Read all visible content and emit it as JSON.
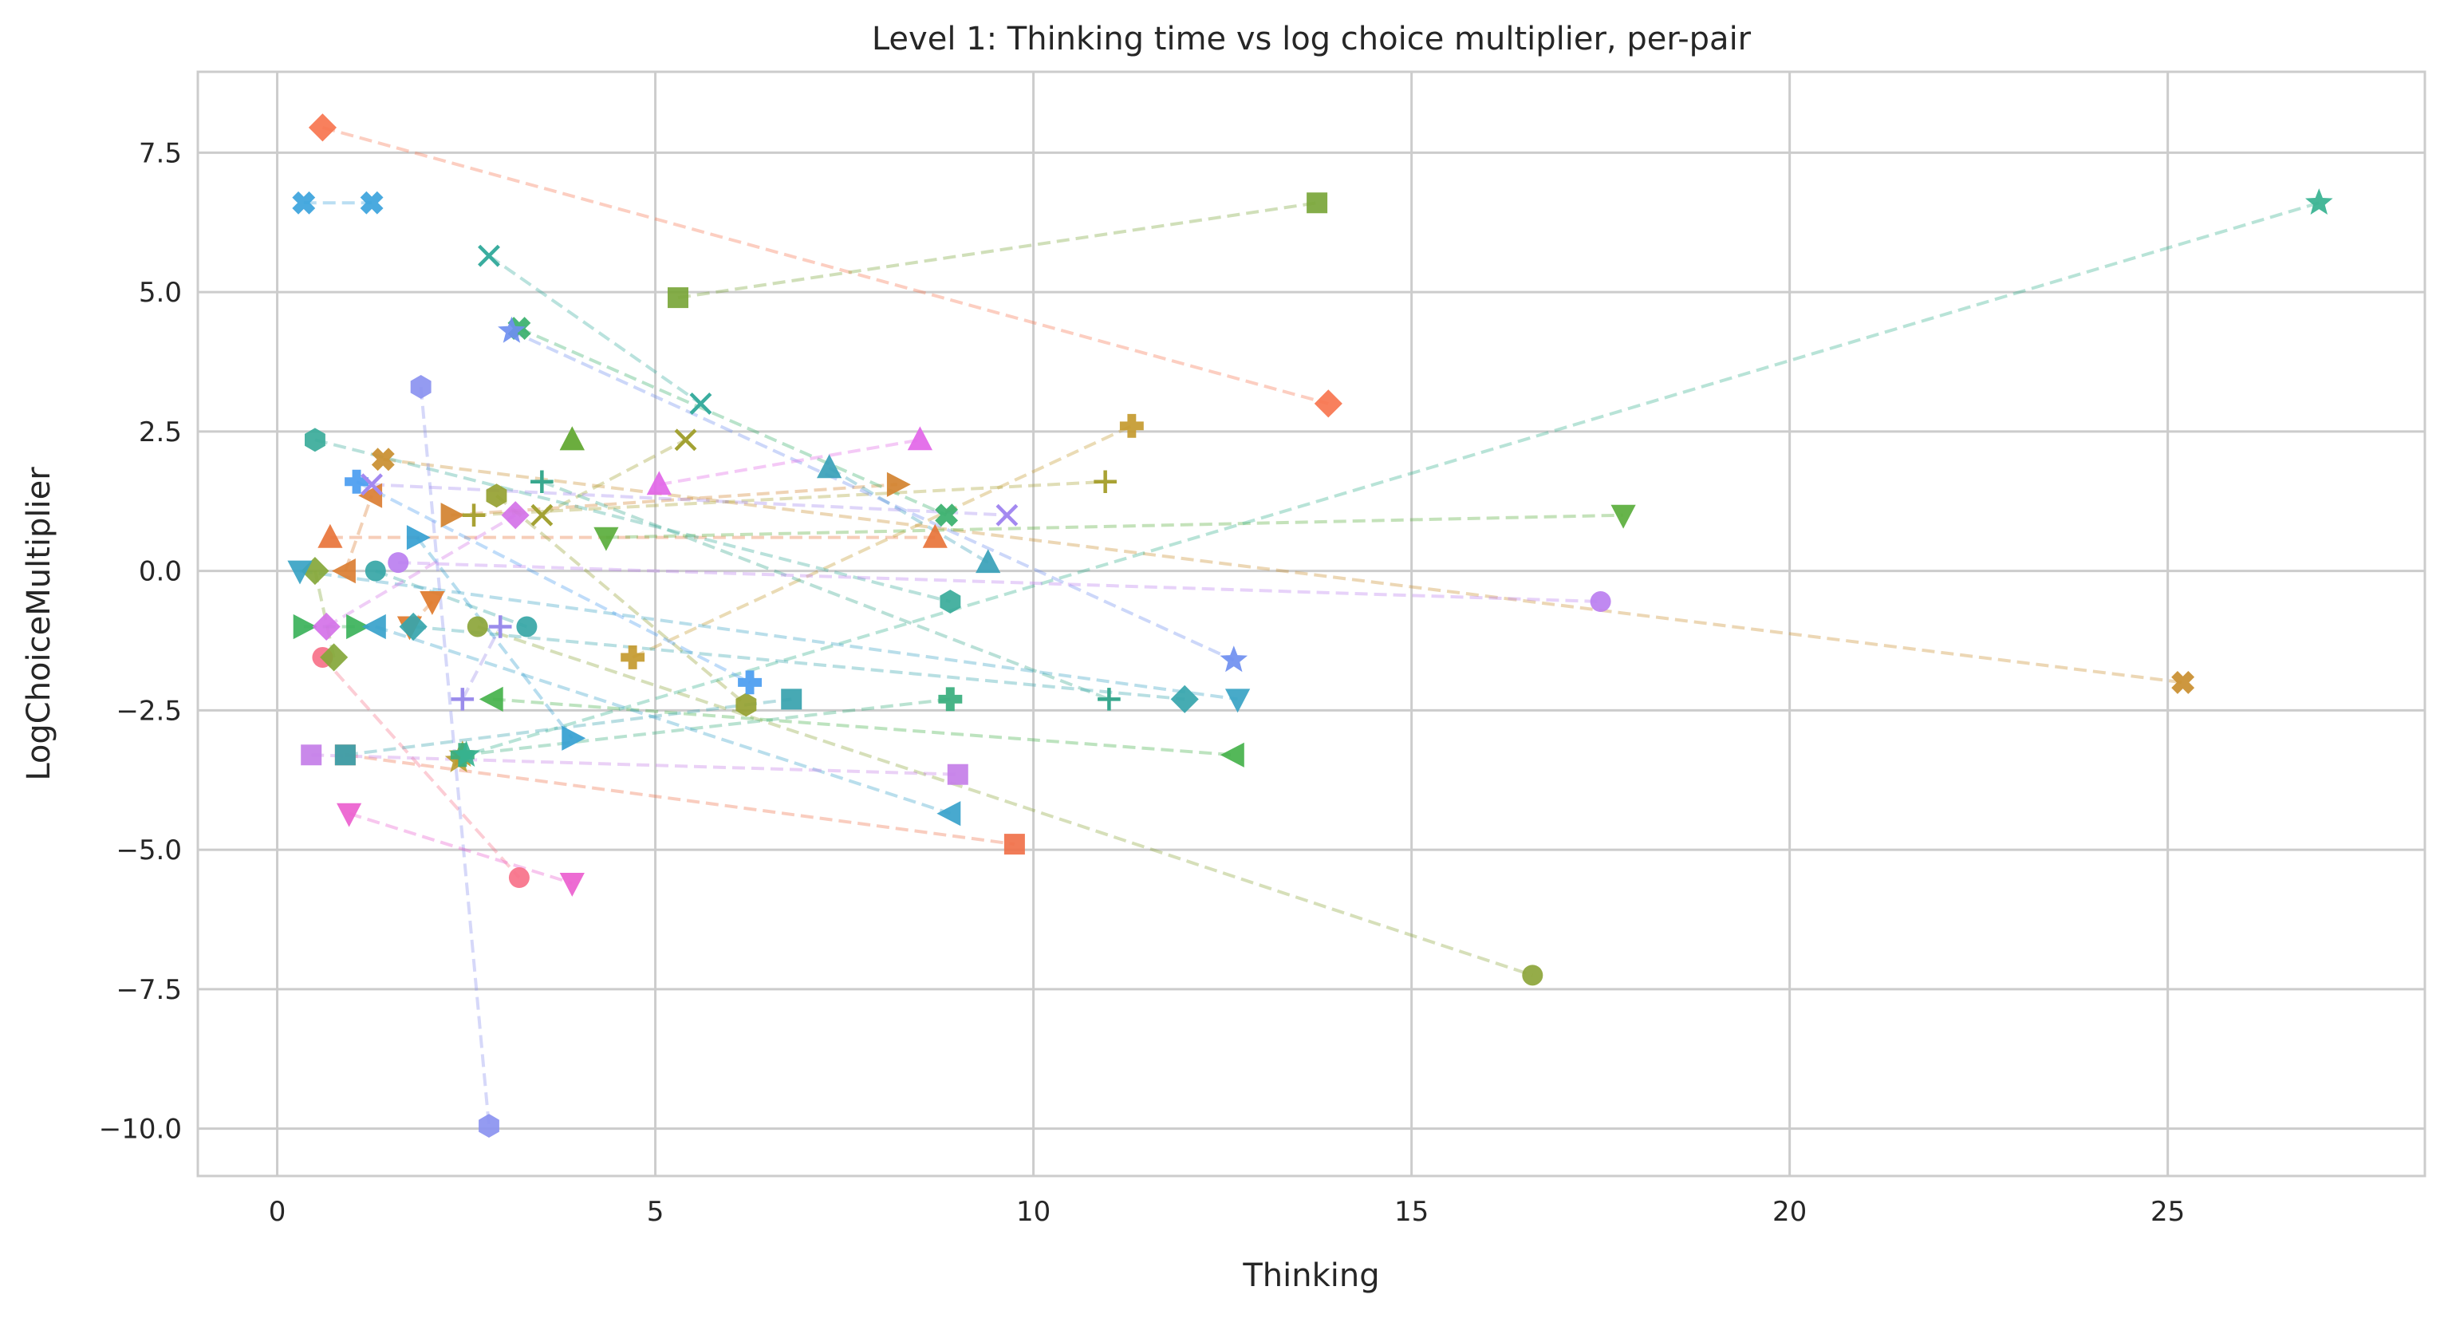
{
  "chart_data": {
    "type": "scatter",
    "title": "Level 1: Thinking time vs log choice multiplier, per-pair",
    "xlabel": "Thinking",
    "ylabel": "LogChoiceMultiplier",
    "xlim": [
      -1.05,
      28.4
    ],
    "ylim": [
      -10.85,
      8.95
    ],
    "xticks": [
      0,
      5,
      10,
      15,
      20,
      25
    ],
    "yticks": [
      -10.0,
      -7.5,
      -5.0,
      -2.5,
      0.0,
      2.5,
      5.0,
      7.5
    ],
    "xtick_labels": [
      "0",
      "5",
      "10",
      "15",
      "20",
      "25"
    ],
    "ytick_labels": [
      "−10.0",
      "−7.5",
      "−5.0",
      "−2.5",
      "0.0",
      "2.5",
      "5.0",
      "7.5"
    ],
    "grid": true,
    "pairs": [
      {
        "color": "#f77189",
        "marker": "circle",
        "points": [
          [
            0.6,
            -1.55
          ],
          [
            3.2,
            -5.5
          ]
        ]
      },
      {
        "color": "#f7754f",
        "marker": "diamond",
        "points": [
          [
            0.6,
            7.95
          ],
          [
            13.9,
            3.0
          ]
        ]
      },
      {
        "color": "#f0714a",
        "marker": "square",
        "points": [
          [
            0.9,
            -3.3
          ],
          [
            9.75,
            -4.9
          ]
        ]
      },
      {
        "color": "#e8743a",
        "marker": "triangle-up",
        "points": [
          [
            0.7,
            0.6
          ],
          [
            8.7,
            0.6
          ]
        ]
      },
      {
        "color": "#e07a2b",
        "marker": "triangle-down",
        "points": [
          [
            2.05,
            -0.55
          ],
          [
            1.75,
            -1.0
          ]
        ]
      },
      {
        "color": "#db7e33",
        "marker": "triangle-left",
        "points": [
          [
            0.9,
            0.0
          ],
          [
            1.25,
            1.35
          ]
        ]
      },
      {
        "color": "#d3822f",
        "marker": "triangle-right",
        "points": [
          [
            2.3,
            1.0
          ],
          [
            8.2,
            1.55
          ]
        ]
      },
      {
        "color": "#c98e2f",
        "marker": "x-filled",
        "points": [
          [
            1.4,
            2.0
          ],
          [
            25.2,
            -2.0
          ]
        ]
      },
      {
        "color": "#c49a2f",
        "marker": "plus-filled",
        "points": [
          [
            4.7,
            -1.55
          ],
          [
            11.3,
            2.6
          ]
        ]
      },
      {
        "color": "#bb9c31",
        "marker": "star",
        "points": [
          [
            2.4,
            -3.4
          ],
          [
            2.45,
            -3.3
          ]
        ]
      },
      {
        "color": "#a9a234",
        "marker": "plus",
        "points": [
          [
            2.6,
            1.0
          ],
          [
            10.95,
            1.6
          ]
        ]
      },
      {
        "color": "#a3a233",
        "marker": "x",
        "points": [
          [
            3.5,
            1.0
          ],
          [
            5.4,
            2.35
          ]
        ]
      },
      {
        "color": "#95a131",
        "marker": "hexagon",
        "points": [
          [
            2.9,
            1.35
          ],
          [
            6.2,
            -2.4
          ]
        ]
      },
      {
        "color": "#8ca53a",
        "marker": "circle",
        "points": [
          [
            2.65,
            -1.0
          ],
          [
            16.6,
            -7.25
          ]
        ]
      },
      {
        "color": "#84a739",
        "marker": "diamond",
        "points": [
          [
            0.75,
            -1.55
          ],
          [
            0.5,
            0.0
          ]
        ]
      },
      {
        "color": "#7aa63a",
        "marker": "square",
        "points": [
          [
            5.3,
            4.9
          ],
          [
            13.75,
            6.6
          ]
        ]
      },
      {
        "color": "#6aac3d",
        "marker": "triangle-up",
        "points": [
          [
            3.9,
            2.35
          ],
          [
            3.9,
            2.35
          ]
        ]
      },
      {
        "color": "#5aae3c",
        "marker": "triangle-down",
        "points": [
          [
            4.35,
            0.6
          ],
          [
            17.8,
            1.0
          ]
        ]
      },
      {
        "color": "#45b24b",
        "marker": "triangle-left",
        "points": [
          [
            2.85,
            -2.3
          ],
          [
            12.65,
            -3.3
          ]
        ]
      },
      {
        "color": "#3bb25a",
        "marker": "triangle-right",
        "points": [
          [
            0.35,
            -1.0
          ],
          [
            1.05,
            -1.0
          ]
        ]
      },
      {
        "color": "#38b06c",
        "marker": "x-filled",
        "points": [
          [
            3.2,
            4.35
          ],
          [
            8.85,
            1.0
          ]
        ]
      },
      {
        "color": "#38ae7d",
        "marker": "plus-filled",
        "points": [
          [
            8.9,
            -2.3
          ],
          [
            2.45,
            -3.3
          ]
        ]
      },
      {
        "color": "#36b290",
        "marker": "star",
        "points": [
          [
            27.0,
            6.6
          ],
          [
            2.5,
            -3.3
          ]
        ]
      },
      {
        "color": "#38a88e",
        "marker": "plus",
        "points": [
          [
            3.5,
            1.6
          ],
          [
            11.0,
            -2.3
          ]
        ]
      },
      {
        "color": "#3aad9f",
        "marker": "x",
        "points": [
          [
            2.8,
            5.65
          ],
          [
            5.6,
            3.0
          ]
        ]
      },
      {
        "color": "#3aab9a",
        "marker": "hexagon",
        "points": [
          [
            0.5,
            2.35
          ],
          [
            8.9,
            -0.55
          ]
        ]
      },
      {
        "color": "#36a6a6",
        "marker": "circle",
        "points": [
          [
            1.3,
            0.0
          ],
          [
            3.3,
            -1.0
          ]
        ]
      },
      {
        "color": "#36a5ad",
        "marker": "diamond",
        "points": [
          [
            1.8,
            -1.0
          ],
          [
            12.0,
            -2.3
          ]
        ]
      },
      {
        "color": "#37a2ae",
        "marker": "square",
        "points": [
          [
            0.9,
            -3.3
          ],
          [
            6.8,
            -2.3
          ]
        ]
      },
      {
        "color": "#38a1b9",
        "marker": "triangle-up",
        "points": [
          [
            7.3,
            1.85
          ],
          [
            9.4,
            0.15
          ]
        ]
      },
      {
        "color": "#38a3c4",
        "marker": "triangle-down",
        "points": [
          [
            0.3,
            0.0
          ],
          [
            12.7,
            -2.3
          ]
        ]
      },
      {
        "color": "#38a2cb",
        "marker": "triangle-left",
        "points": [
          [
            1.3,
            -1.0
          ],
          [
            8.9,
            -4.35
          ]
        ]
      },
      {
        "color": "#359fd1",
        "marker": "triangle-right",
        "points": [
          [
            1.85,
            0.6
          ],
          [
            3.9,
            -3.0
          ]
        ]
      },
      {
        "color": "#3ba3dc",
        "marker": "x-filled",
        "points": [
          [
            0.35,
            6.6
          ],
          [
            1.25,
            6.6
          ]
        ]
      },
      {
        "color": "#4a9cf0",
        "marker": "plus-filled",
        "points": [
          [
            1.05,
            1.6
          ],
          [
            6.25,
            -2.0
          ]
        ]
      },
      {
        "color": "#6f8ff0",
        "marker": "star",
        "points": [
          [
            3.1,
            4.3
          ],
          [
            12.65,
            -1.6
          ]
        ]
      },
      {
        "color": "#8b92f0",
        "marker": "hexagon",
        "points": [
          [
            1.9,
            3.3
          ],
          [
            2.8,
            -9.95
          ]
        ]
      },
      {
        "color": "#9a8ceb",
        "marker": "plus",
        "points": [
          [
            2.45,
            -2.3
          ],
          [
            2.95,
            -1.0
          ]
        ]
      },
      {
        "color": "#a389f0",
        "marker": "x",
        "points": [
          [
            1.25,
            1.55
          ],
          [
            9.65,
            1.0
          ]
        ]
      },
      {
        "color": "#bb7ff0",
        "marker": "circle",
        "points": [
          [
            1.6,
            0.15
          ],
          [
            17.5,
            -0.55
          ]
        ]
      },
      {
        "color": "#c47ee8",
        "marker": "square",
        "points": [
          [
            0.45,
            -3.3
          ],
          [
            9.0,
            -3.65
          ]
        ]
      },
      {
        "color": "#d472e8",
        "marker": "diamond",
        "points": [
          [
            0.65,
            -1.0
          ],
          [
            3.15,
            1.0
          ]
        ]
      },
      {
        "color": "#e266e8",
        "marker": "triangle-up",
        "points": [
          [
            5.05,
            1.55
          ],
          [
            8.5,
            2.35
          ]
        ]
      },
      {
        "color": "#eb5fcf",
        "marker": "triangle-down",
        "points": [
          [
            0.95,
            -4.35
          ],
          [
            3.9,
            -5.6
          ]
        ]
      }
    ]
  }
}
